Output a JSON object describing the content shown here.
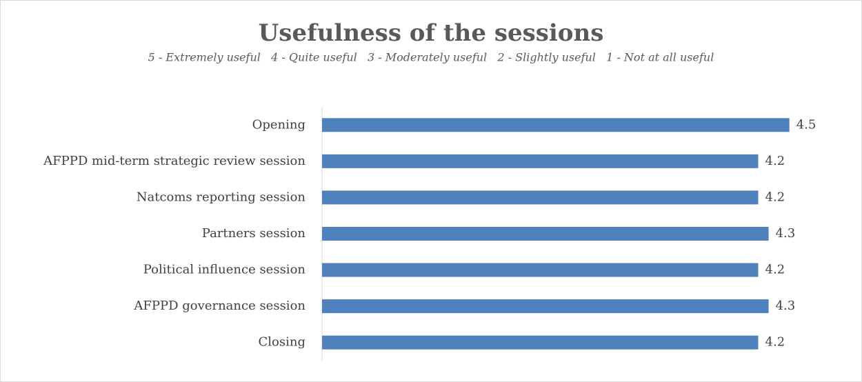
{
  "chart_data": {
    "type": "bar",
    "orientation": "horizontal",
    "title": "Usefulness of the sessions",
    "subtitle": "5 - Extremely useful   4 - Quite useful   3 - Moderately useful   2 - Slightly useful   1 - Not at all useful",
    "categories": [
      "Opening",
      "AFPPD mid-term strategic review session",
      "Natcoms reporting session",
      "Partners session",
      "Political influence session",
      "AFPPD governance session",
      "Closing"
    ],
    "values": [
      4.5,
      4.2,
      4.2,
      4.3,
      4.2,
      4.3,
      4.2
    ],
    "color": "#4f81bd",
    "xlim": [
      0,
      5
    ]
  }
}
